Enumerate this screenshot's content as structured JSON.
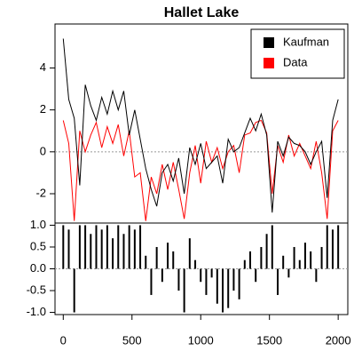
{
  "chart_data": [
    {
      "type": "line",
      "title": "Hallet Lake",
      "x": [
        0,
        40,
        80,
        120,
        160,
        200,
        240,
        280,
        320,
        360,
        400,
        440,
        480,
        520,
        560,
        600,
        640,
        680,
        720,
        760,
        800,
        840,
        880,
        920,
        960,
        1000,
        1040,
        1080,
        1120,
        1160,
        1200,
        1240,
        1280,
        1320,
        1360,
        1400,
        1440,
        1480,
        1520,
        1560,
        1600,
        1640,
        1680,
        1720,
        1760,
        1800,
        1840,
        1880,
        1920,
        1960,
        2000
      ],
      "series": [
        {
          "name": "Kaufman",
          "color": "#000000",
          "values": [
            5.4,
            2.5,
            1.6,
            -1.6,
            3.2,
            2.2,
            1.5,
            2.6,
            1.8,
            2.9,
            2.0,
            2.9,
            0.8,
            2.0,
            0.6,
            -0.8,
            -1.8,
            -2.6,
            -1.0,
            -0.6,
            -1.4,
            -0.3,
            -2.0,
            0.2,
            -0.6,
            0.4,
            -0.8,
            -0.5,
            -0.2,
            -1.5,
            0.6,
            0.0,
            0.2,
            0.9,
            1.6,
            1.0,
            1.8,
            0.8,
            -2.9,
            0.5,
            -0.2,
            0.7,
            0.4,
            0.3,
            0.0,
            -0.6,
            0.0,
            0.5,
            -2.2,
            1.5,
            2.5
          ]
        },
        {
          "name": "Data",
          "color": "#ff0000",
          "values": [
            1.5,
            0.4,
            -3.3,
            1.0,
            0.0,
            0.8,
            1.4,
            0.2,
            1.2,
            0.4,
            1.3,
            -0.2,
            1.0,
            -1.2,
            -1.0,
            -3.3,
            -1.2,
            -2.0,
            -0.6,
            -1.8,
            -0.5,
            -1.8,
            -3.2,
            -1.0,
            0.3,
            -1.5,
            0.5,
            -0.5,
            0.2,
            -0.8,
            0.0,
            0.3,
            -1.0,
            0.8,
            0.9,
            1.4,
            1.5,
            0.9,
            -2.0,
            0.3,
            -0.5,
            0.8,
            -0.2,
            0.4,
            -0.2,
            -0.8,
            0.5,
            -1.0,
            -3.2,
            1.0,
            1.5
          ]
        }
      ],
      "xlim": [
        -60,
        2070
      ],
      "ylim": [
        -3.4,
        6.1
      ],
      "yticks": [
        -2,
        0,
        2,
        4
      ],
      "zero_line": true,
      "legend": "top-right"
    },
    {
      "type": "bar",
      "color": "#000000",
      "x": [
        0,
        40,
        80,
        120,
        160,
        200,
        240,
        280,
        320,
        360,
        400,
        440,
        480,
        520,
        560,
        600,
        640,
        680,
        720,
        760,
        800,
        840,
        880,
        920,
        960,
        1000,
        1040,
        1080,
        1120,
        1160,
        1200,
        1240,
        1280,
        1320,
        1360,
        1400,
        1440,
        1480,
        1520,
        1560,
        1600,
        1640,
        1680,
        1720,
        1760,
        1800,
        1840,
        1880,
        1920,
        1960,
        2000
      ],
      "values": [
        1.0,
        0.9,
        -1.0,
        1.0,
        1.0,
        0.8,
        1.0,
        0.9,
        1.0,
        0.7,
        1.0,
        0.8,
        1.0,
        0.9,
        1.0,
        0.3,
        -0.6,
        0.5,
        -0.3,
        0.6,
        0.4,
        -0.5,
        -1.0,
        0.7,
        0.2,
        -0.3,
        -0.6,
        -0.2,
        -0.8,
        -1.0,
        -0.9,
        -0.5,
        -0.7,
        0.2,
        0.4,
        -0.3,
        0.5,
        0.8,
        1.0,
        -0.6,
        0.3,
        -0.2,
        0.5,
        0.2,
        0.6,
        0.4,
        -0.3,
        0.5,
        1.0,
        0.9,
        1.0
      ],
      "xlim": [
        -60,
        2070
      ],
      "ylim": [
        -1.05,
        1.05
      ],
      "yticks": [
        {
          "value": -1.0,
          "label": "-1.0"
        },
        {
          "value": -0.5,
          "label": "-0.5"
        },
        {
          "value": 0,
          "label": "0.0"
        },
        {
          "value": 0.5,
          "label": "0.5"
        },
        {
          "value": 1.0,
          "label": "1.0"
        }
      ],
      "xticks": [
        0,
        500,
        1000,
        1500,
        2000
      ],
      "zero_line": true
    }
  ]
}
